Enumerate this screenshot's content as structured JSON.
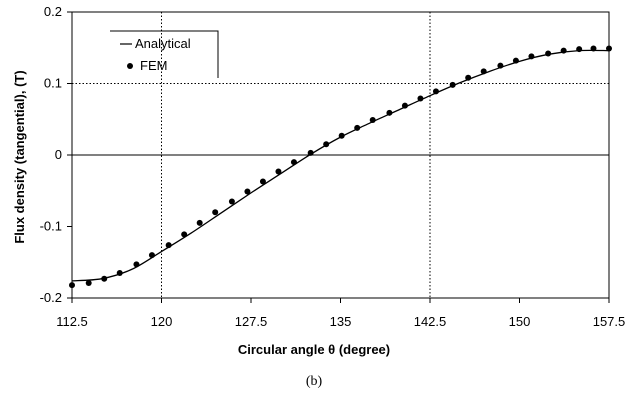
{
  "chart_data": {
    "type": "line",
    "title": "",
    "caption": "(b)",
    "xlabel": "Circular angle θ (degree)",
    "ylabel": "Flux density (tangential), (T)",
    "xlim": [
      112.5,
      157.5
    ],
    "ylim": [
      -0.2,
      0.2
    ],
    "xticks": [
      "112.5",
      "120",
      "127.5",
      "135",
      "142.5",
      "150",
      "157.5"
    ],
    "yticks": [
      "0.2",
      "0.1",
      "0",
      "-0.1",
      "-0.2"
    ],
    "grid": {
      "vertical_at": [
        120,
        142.5
      ],
      "horizontal_at": [
        0.1,
        0
      ]
    },
    "legend": {
      "placement": "top-left",
      "entries": [
        "Analytical",
        "FEM"
      ]
    },
    "series": [
      {
        "name": "Analytical",
        "style": "line",
        "x": [
          112.5,
          115,
          117.5,
          120,
          122.5,
          125,
          127.5,
          130,
          132.5,
          135,
          137.5,
          140,
          142.5,
          145,
          147.5,
          150,
          152.5,
          155,
          157.5
        ],
        "y": [
          -0.176,
          -0.173,
          -0.16,
          -0.135,
          -0.109,
          -0.081,
          -0.053,
          -0.026,
          0.001,
          0.025,
          0.045,
          0.064,
          0.083,
          0.101,
          0.117,
          0.131,
          0.141,
          0.146,
          0.146
        ]
      },
      {
        "name": "FEM",
        "style": "markers",
        "x": [
          112.5,
          113.9,
          115.2,
          116.5,
          117.9,
          119.2,
          120.6,
          121.9,
          123.2,
          124.5,
          125.9,
          127.2,
          128.5,
          129.8,
          131.1,
          132.5,
          133.8,
          135.1,
          136.4,
          137.7,
          139.1,
          140.4,
          141.7,
          143.0,
          144.4,
          145.7,
          147.0,
          148.4,
          149.7,
          151.0,
          152.4,
          153.7,
          155.0,
          156.2,
          157.5
        ],
        "y": [
          -0.182,
          -0.179,
          -0.173,
          -0.165,
          -0.153,
          -0.14,
          -0.126,
          -0.111,
          -0.095,
          -0.08,
          -0.065,
          -0.051,
          -0.037,
          -0.023,
          -0.01,
          0.003,
          0.015,
          0.027,
          0.038,
          0.049,
          0.059,
          0.069,
          0.079,
          0.089,
          0.098,
          0.108,
          0.117,
          0.125,
          0.132,
          0.138,
          0.142,
          0.146,
          0.148,
          0.149,
          0.149
        ]
      }
    ]
  }
}
